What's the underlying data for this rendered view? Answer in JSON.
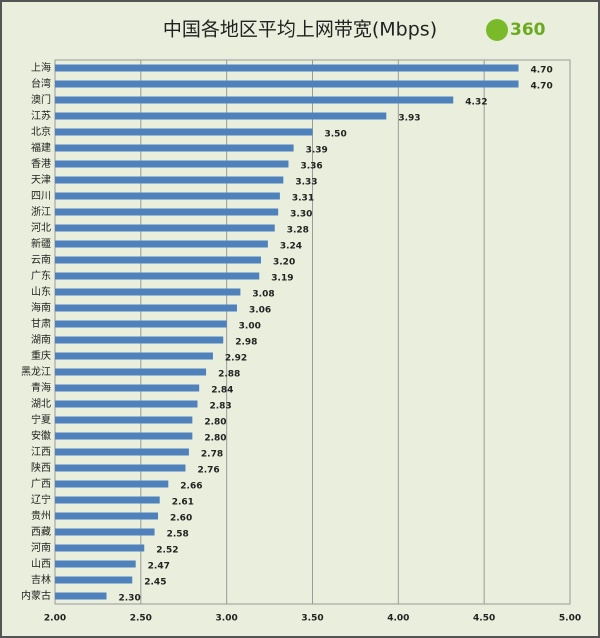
{
  "chart_data": {
    "type": "bar",
    "orientation": "horizontal",
    "title": "中国各地区平均上网带宽(Mbps)",
    "logo": "360",
    "categories": [
      "上海",
      "台湾",
      "澳门",
      "江苏",
      "北京",
      "福建",
      "香港",
      "天津",
      "四川",
      "浙江",
      "河北",
      "新疆",
      "云南",
      "广东",
      "山东",
      "海南",
      "甘肃",
      "湖南",
      "重庆",
      "黑龙江",
      "青海",
      "湖北",
      "宁夏",
      "安徽",
      "江西",
      "陕西",
      "广西",
      "辽宁",
      "贵州",
      "西藏",
      "河南",
      "山西",
      "吉林",
      "内蒙古"
    ],
    "values": [
      4.7,
      4.7,
      4.32,
      3.93,
      3.5,
      3.39,
      3.36,
      3.33,
      3.31,
      3.3,
      3.28,
      3.24,
      3.2,
      3.19,
      3.08,
      3.06,
      3,
      2.98,
      2.92,
      2.88,
      2.84,
      2.83,
      2.8,
      2.8,
      2.78,
      2.76,
      2.66,
      2.61,
      2.6,
      2.58,
      2.52,
      2.47,
      2.45,
      2.3
    ],
    "value_labels": [
      "4.70",
      "4.70",
      "4.32",
      "3.93",
      "3.50",
      "3.39",
      "3.36",
      "3.33",
      "3.31",
      "3.30",
      "3.28",
      "3.24",
      "3.20",
      "3.19",
      "3.08",
      "3.06",
      "3.00",
      "2.98",
      "2.92",
      "2.88",
      "2.84",
      "2.83",
      "2.80",
      "2.80",
      "2.78",
      "2.76",
      "2.66",
      "2.61",
      "2.60",
      "2.58",
      "2.52",
      "2.47",
      "2.45",
      "2.30"
    ],
    "color": "#4f81bd",
    "xlim": [
      2,
      5
    ],
    "xticks": [
      {
        "value": 2,
        "label": "2.00"
      },
      {
        "value": 2.5,
        "label": "2.50"
      },
      {
        "value": 3,
        "label": "3.00"
      },
      {
        "value": 3.5,
        "label": "3.50"
      },
      {
        "value": 4,
        "label": "4.00"
      },
      {
        "value": 4.5,
        "label": "4.50"
      },
      {
        "value": 5,
        "label": "5.00"
      }
    ],
    "grid": true
  }
}
